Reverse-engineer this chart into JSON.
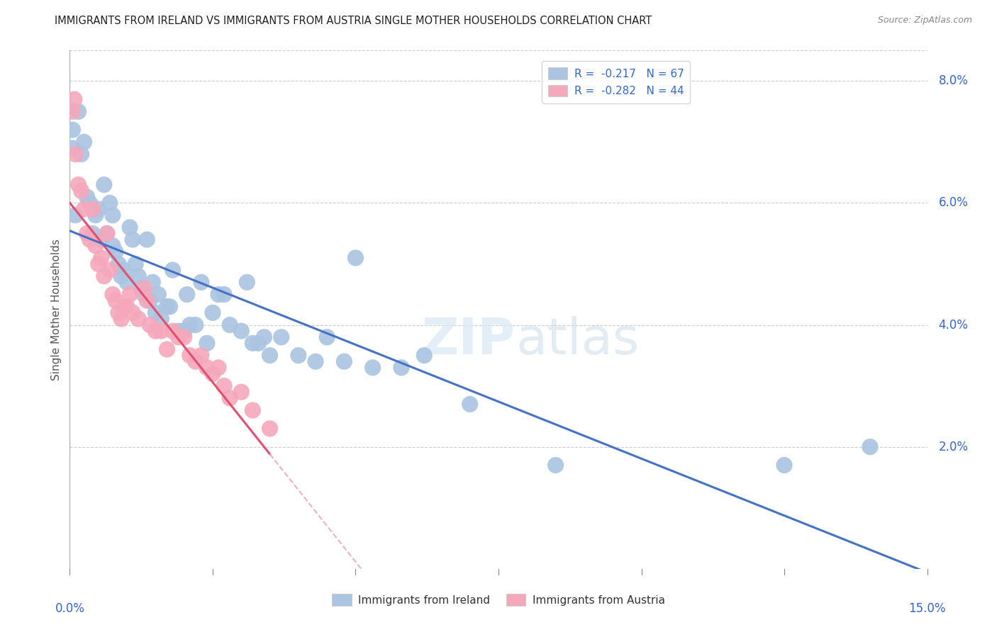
{
  "title": "IMMIGRANTS FROM IRELAND VS IMMIGRANTS FROM AUSTRIA SINGLE MOTHER HOUSEHOLDS CORRELATION CHART",
  "source": "Source: ZipAtlas.com",
  "ylabel": "Single Mother Households",
  "xlim": [
    0.0,
    15.0
  ],
  "ylim": [
    0.0,
    8.5
  ],
  "legend_ireland": "R =  -0.217   N = 67",
  "legend_austria": "R =  -0.282   N = 44",
  "ireland_color": "#aac4e2",
  "austria_color": "#f5a8bc",
  "ireland_line_color": "#4472c4",
  "austria_line_color": "#e05070",
  "austria_dash_color": "#f0b0c0",
  "watermark_zip": "ZIP",
  "watermark_atlas": "atlas",
  "ireland_x": [
    0.05,
    0.05,
    0.1,
    0.15,
    0.2,
    0.25,
    0.3,
    0.35,
    0.4,
    0.45,
    0.5,
    0.55,
    0.6,
    0.65,
    0.7,
    0.75,
    0.75,
    0.8,
    0.85,
    0.9,
    0.95,
    1.0,
    1.05,
    1.1,
    1.15,
    1.2,
    1.25,
    1.3,
    1.35,
    1.4,
    1.45,
    1.5,
    1.55,
    1.6,
    1.7,
    1.75,
    1.8,
    1.9,
    2.0,
    2.05,
    2.1,
    2.2,
    2.3,
    2.4,
    2.5,
    2.6,
    2.7,
    2.8,
    3.0,
    3.1,
    3.2,
    3.3,
    3.4,
    3.5,
    3.7,
    4.0,
    4.3,
    4.5,
    4.8,
    5.3,
    5.8,
    6.2,
    7.0,
    8.5,
    12.5,
    14.0,
    5.0
  ],
  "ireland_y": [
    7.2,
    6.9,
    5.8,
    7.5,
    6.8,
    7.0,
    6.1,
    6.0,
    5.5,
    5.8,
    5.9,
    5.4,
    6.3,
    5.5,
    6.0,
    5.8,
    5.3,
    5.2,
    5.0,
    4.8,
    4.9,
    4.7,
    5.6,
    5.4,
    5.0,
    4.8,
    4.6,
    4.5,
    5.4,
    4.4,
    4.7,
    4.2,
    4.5,
    4.1,
    4.3,
    4.3,
    4.9,
    3.9,
    3.9,
    4.5,
    4.0,
    4.0,
    4.7,
    3.7,
    4.2,
    4.5,
    4.5,
    4.0,
    3.9,
    4.7,
    3.7,
    3.7,
    3.8,
    3.5,
    3.8,
    3.5,
    3.4,
    3.8,
    3.4,
    3.3,
    3.3,
    3.5,
    2.7,
    1.7,
    1.7,
    2.0,
    5.1
  ],
  "austria_x": [
    0.05,
    0.08,
    0.1,
    0.15,
    0.2,
    0.25,
    0.3,
    0.35,
    0.4,
    0.45,
    0.5,
    0.55,
    0.6,
    0.65,
    0.7,
    0.75,
    0.8,
    0.85,
    0.9,
    0.95,
    1.0,
    1.05,
    1.1,
    1.2,
    1.3,
    1.35,
    1.4,
    1.5,
    1.6,
    1.7,
    1.8,
    1.9,
    2.0,
    2.1,
    2.2,
    2.3,
    2.4,
    2.5,
    2.6,
    2.7,
    2.8,
    3.0,
    3.2,
    3.5
  ],
  "austria_y": [
    7.5,
    7.7,
    6.8,
    6.3,
    6.2,
    5.9,
    5.5,
    5.4,
    5.9,
    5.3,
    5.0,
    5.1,
    4.8,
    5.5,
    4.9,
    4.5,
    4.4,
    4.2,
    4.1,
    4.3,
    4.3,
    4.5,
    4.2,
    4.1,
    4.6,
    4.4,
    4.0,
    3.9,
    3.9,
    3.6,
    3.9,
    3.8,
    3.8,
    3.5,
    3.4,
    3.5,
    3.3,
    3.2,
    3.3,
    3.0,
    2.8,
    2.9,
    2.6,
    2.3
  ]
}
